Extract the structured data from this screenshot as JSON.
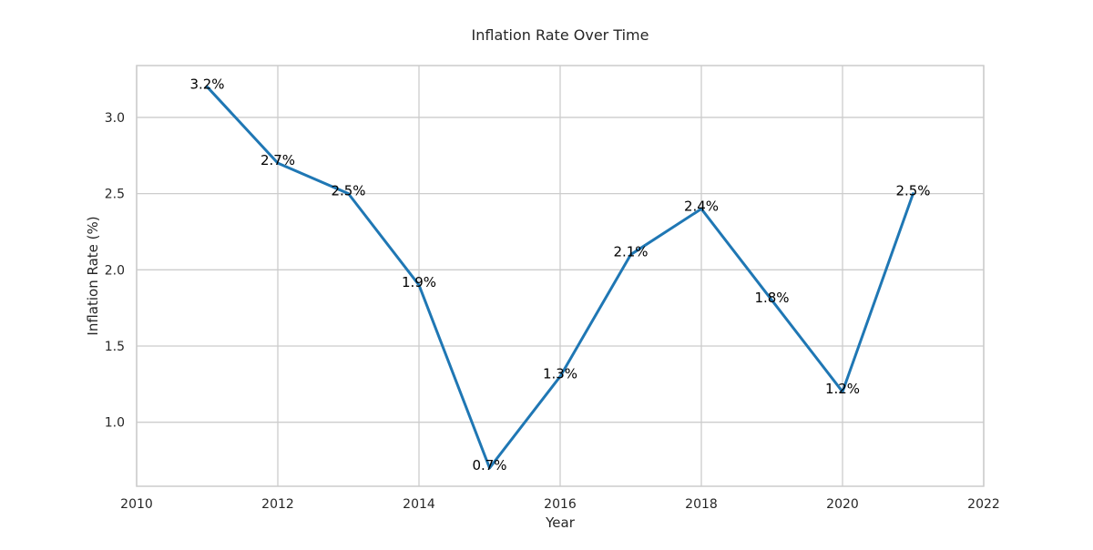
{
  "chart_data": {
    "type": "line",
    "title": "Inflation Rate Over Time",
    "xlabel": "Year",
    "ylabel": "Inflation Rate (%)",
    "x": [
      2011,
      2012,
      2013,
      2014,
      2015,
      2016,
      2017,
      2018,
      2019,
      2020,
      2021
    ],
    "series": [
      {
        "values": [
          3.2,
          2.7,
          2.5,
          1.9,
          0.7,
          1.3,
          2.1,
          2.4,
          1.8,
          1.2,
          2.5
        ],
        "data_labels": [
          "3.2%",
          "2.7%",
          "2.5%",
          "1.9%",
          "0.7%",
          "1.3%",
          "2.1%",
          "2.4%",
          "1.8%",
          "1.2%",
          "2.5%"
        ],
        "color": "#1f77b4"
      }
    ],
    "xlim": [
      2010,
      2022
    ],
    "ylim": [
      0.58,
      3.34
    ],
    "xticks": [
      "2010",
      "2012",
      "2014",
      "2016",
      "2018",
      "2020",
      "2022"
    ],
    "yticks": [
      "1.0",
      "1.5",
      "2.0",
      "2.5",
      "3.0"
    ],
    "grid": true,
    "legend": "none"
  }
}
